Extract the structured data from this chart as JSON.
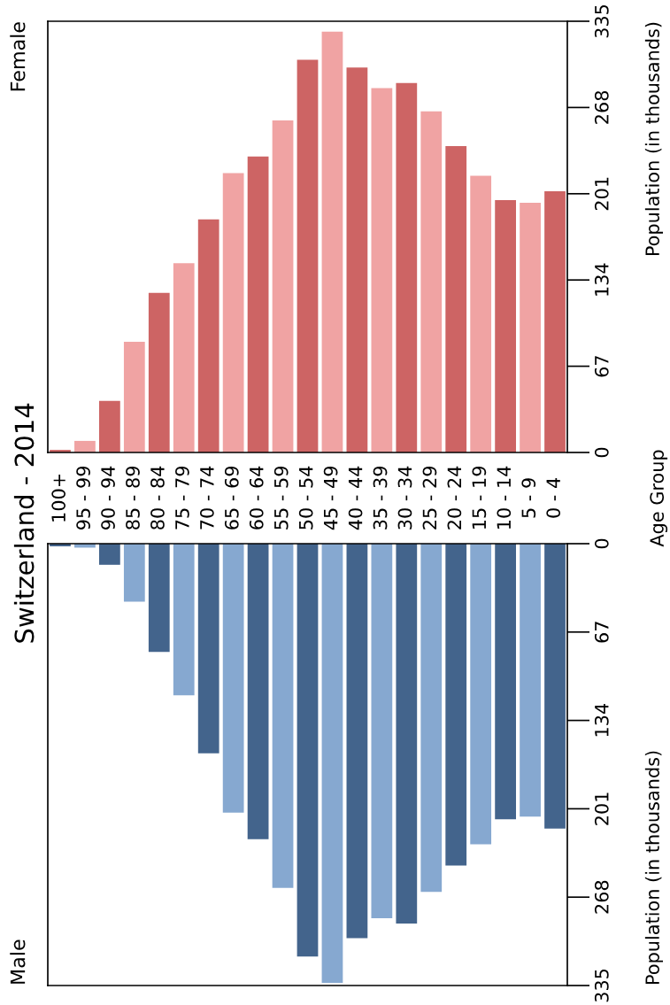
{
  "chart_data": [
    {
      "type": "bar",
      "title": "Switzerland - 2014",
      "annotations": [
        "Age Group"
      ],
      "ylabel": "Population (in thousands)",
      "categories": [
        "100+",
        "95 - 99",
        "90 - 94",
        "85 - 89",
        "80 - 84",
        "75 - 79",
        "70 - 74",
        "65 - 69",
        "60 - 64",
        "55 - 59",
        "50 - 54",
        "45 - 49",
        "40 - 44",
        "35 - 39",
        "30 - 34",
        "25 - 29",
        "20 - 24",
        "15 - 19",
        "10 - 14",
        "5 - 9",
        "0 - 4"
      ],
      "series": [
        {
          "name": "Female",
          "colors": [
            "#cd6464",
            "#f0a3a3",
            "#cd6464",
            "#f0a3a3",
            "#cd6464",
            "#f0a3a3",
            "#cd6464",
            "#f0a3a3",
            "#cd6464",
            "#f0a3a3",
            "#cd6464",
            "#f0a3a3",
            "#cd6464",
            "#f0a3a3",
            "#cd6464",
            "#f0a3a3",
            "#cd6464",
            "#f0a3a3",
            "#cd6464",
            "#f0a3a3",
            "#cd6464"
          ],
          "values": [
            2,
            9,
            40,
            86,
            124,
            147,
            181,
            217,
            230,
            258,
            305,
            327,
            299,
            283,
            287,
            265,
            238,
            215,
            196,
            194,
            203
          ]
        }
      ],
      "ylim": [
        0,
        335
      ],
      "yticks": [
        0,
        67,
        134,
        201,
        268,
        335
      ],
      "grid": false
    },
    {
      "type": "bar",
      "ylabel": "Population (in thousands)",
      "categories": [
        null,
        null,
        null,
        null,
        null,
        null,
        null,
        null,
        null,
        null,
        null,
        null,
        null,
        null,
        null,
        null,
        null,
        null,
        null,
        null,
        null
      ],
      "series": [
        {
          "name": "Male",
          "colors": [
            "#43648c",
            "#86a8d0",
            "#43648c",
            "#86a8d0",
            "#43648c",
            "#86a8d0",
            "#43648c",
            "#86a8d0",
            "#43648c",
            "#86a8d0",
            "#43648c",
            "#86a8d0",
            "#43648c",
            "#86a8d0",
            "#43648c",
            "#86a8d0",
            "#43648c",
            "#86a8d0",
            "#43648c",
            "#86a8d0",
            "#43648c"
          ],
          "values": [
            2,
            3,
            16,
            44,
            82,
            115,
            159,
            204,
            224,
            261,
            313,
            333,
            299,
            284,
            288,
            264,
            244,
            228,
            209,
            207,
            216
          ]
        }
      ],
      "ylim": [
        335,
        0
      ],
      "yticks": [
        0,
        67,
        134,
        201,
        268,
        335
      ],
      "tick_labels": "y",
      "grid": false
    }
  ]
}
